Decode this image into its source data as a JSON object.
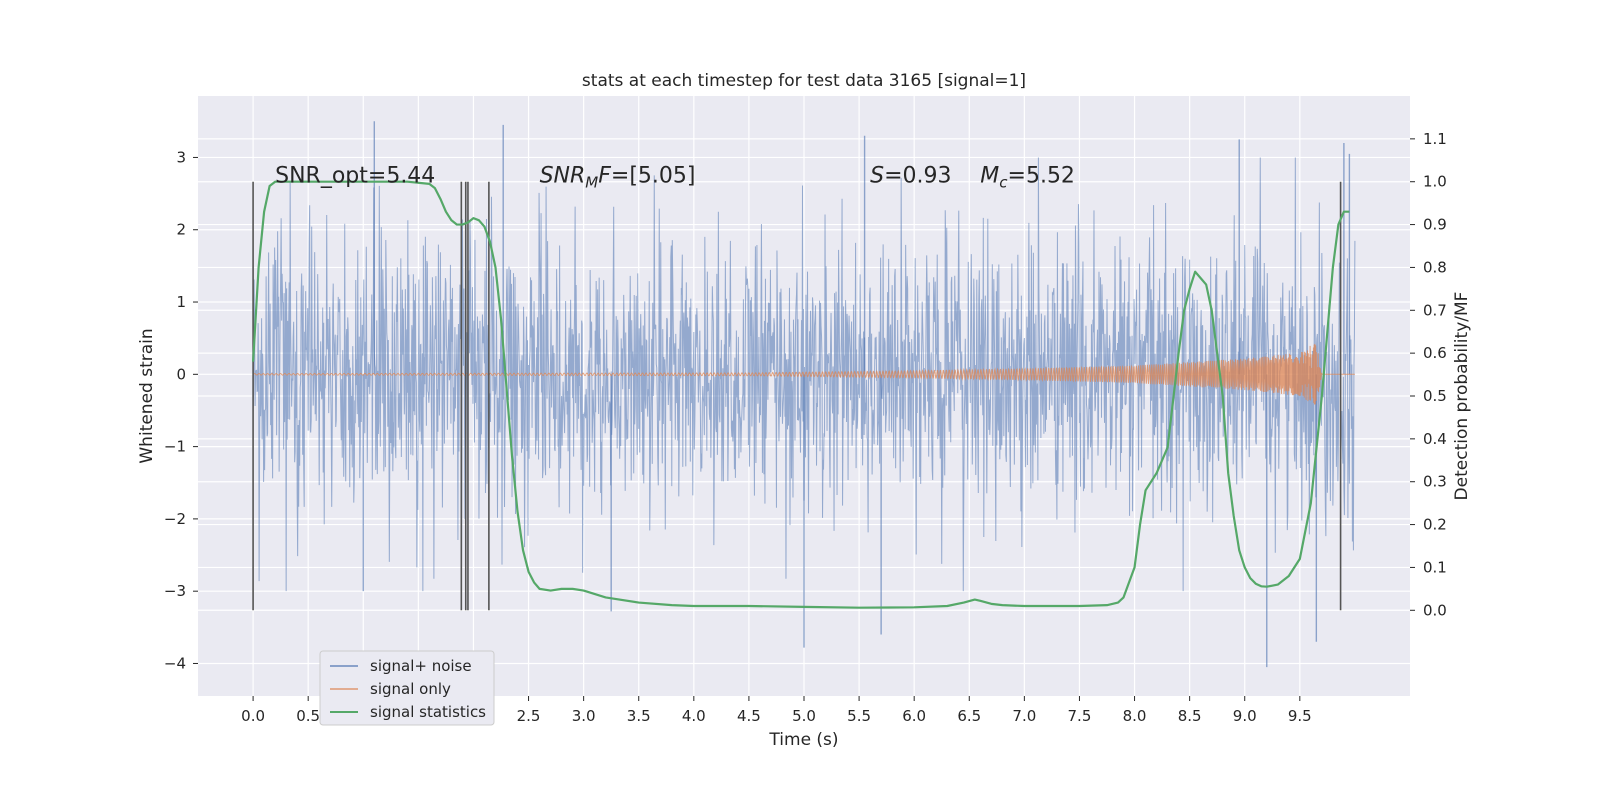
{
  "chart_data": {
    "type": "line",
    "title": "stats at each timestep for test data 3165 [signal=1]",
    "xlabel": "Time (s)",
    "ylabel": "Whitened strain",
    "y2label": "Detection probability/MF",
    "xlim": [
      -0.5,
      10.5
    ],
    "ylim": [
      -4.45,
      3.85
    ],
    "y2lim": [
      -0.2,
      1.2
    ],
    "x_ticks": [
      0.0,
      0.5,
      1.0,
      1.5,
      2.0,
      2.5,
      3.0,
      3.5,
      4.0,
      4.5,
      5.0,
      5.5,
      6.0,
      6.5,
      7.0,
      7.5,
      8.0,
      8.5,
      9.0,
      9.5
    ],
    "x_tick_labels": [
      "0.0",
      "0.5",
      "1.0",
      "1.5",
      "2.0",
      "2.5",
      "3.0",
      "3.5",
      "4.0",
      "4.5",
      "5.0",
      "5.5",
      "6.0",
      "6.5",
      "7.0",
      "7.5",
      "8.0",
      "8.5",
      "9.0",
      "9.5"
    ],
    "y_ticks": [
      -4,
      -3,
      -2,
      -1,
      0,
      1,
      2,
      3
    ],
    "y_tick_labels": [
      "−4",
      "−3",
      "−2",
      "−1",
      "0",
      "1",
      "2",
      "3"
    ],
    "y2_ticks": [
      0.0,
      0.1,
      0.2,
      0.3,
      0.4,
      0.5,
      0.6,
      0.7,
      0.8,
      0.9,
      1.0,
      1.1
    ],
    "y2_tick_labels": [
      "0.0",
      "0.1",
      "0.2",
      "0.3",
      "0.4",
      "0.5",
      "0.6",
      "0.7",
      "0.8",
      "0.9",
      "1.0",
      "1.1"
    ],
    "grid": true,
    "legend_position": "lower-left",
    "series": [
      {
        "name": "signal+ noise",
        "axis": "left",
        "color": "#4c72b0",
        "style": "dense noise, envelope approx ±2.2 with spikes to about ±3.5",
        "x_range": [
          0.0,
          10.0
        ],
        "spikes": [
          {
            "x": 1.1,
            "y": 3.5
          },
          {
            "x": 2.27,
            "y": 3.45
          },
          {
            "x": 5.0,
            "y": -3.78
          },
          {
            "x": 5.55,
            "y": 3.3
          },
          {
            "x": 5.7,
            "y": -3.6
          },
          {
            "x": 9.2,
            "y": -4.05
          },
          {
            "x": 9.65,
            "y": -3.7
          },
          {
            "x": 9.9,
            "y": 3.2
          },
          {
            "x": 9.95,
            "y": 3.05
          },
          {
            "x": 8.95,
            "y": 3.25
          },
          {
            "x": 1.0,
            "y": -3.0
          },
          {
            "x": 3.25,
            "y": -3.28
          }
        ]
      },
      {
        "name": "signal only",
        "axis": "left",
        "color": "#dd8452",
        "style": "chirp with growing amplitude, peak near x=9.65",
        "x_range": [
          0.0,
          10.0
        ],
        "envelope": [
          {
            "x": 0.0,
            "amp": 0.01
          },
          {
            "x": 4.5,
            "amp": 0.02
          },
          {
            "x": 6.0,
            "amp": 0.05
          },
          {
            "x": 7.0,
            "amp": 0.08
          },
          {
            "x": 8.0,
            "amp": 0.12
          },
          {
            "x": 9.0,
            "amp": 0.22
          },
          {
            "x": 9.5,
            "amp": 0.3
          },
          {
            "x": 9.65,
            "amp": 0.45
          },
          {
            "x": 9.7,
            "amp": 0.0
          }
        ]
      },
      {
        "name": "signal statistics",
        "axis": "right",
        "color": "#55a868",
        "x": [
          0.0,
          0.05,
          0.1,
          0.15,
          0.2,
          0.3,
          0.5,
          0.8,
          1.0,
          1.2,
          1.4,
          1.6,
          1.65,
          1.7,
          1.75,
          1.8,
          1.85,
          1.9,
          1.95,
          2.0,
          2.05,
          2.1,
          2.15,
          2.2,
          2.25,
          2.3,
          2.35,
          2.4,
          2.45,
          2.5,
          2.55,
          2.6,
          2.7,
          2.8,
          2.9,
          3.0,
          3.2,
          3.5,
          3.8,
          4.0,
          4.5,
          5.0,
          5.5,
          6.0,
          6.3,
          6.45,
          6.55,
          6.6,
          6.7,
          6.8,
          7.0,
          7.5,
          7.75,
          7.85,
          7.9,
          8.0,
          8.05,
          8.1,
          8.2,
          8.3,
          8.4,
          8.45,
          8.5,
          8.55,
          8.6,
          8.65,
          8.7,
          8.8,
          8.85,
          8.9,
          8.95,
          9.0,
          9.05,
          9.1,
          9.15,
          9.2,
          9.3,
          9.4,
          9.5,
          9.6,
          9.7,
          9.8,
          9.85,
          9.9,
          9.95
        ],
        "y": [
          0.58,
          0.8,
          0.93,
          0.99,
          1.0,
          1.0,
          1.0,
          1.0,
          1.0,
          1.0,
          1.0,
          0.995,
          0.985,
          0.96,
          0.93,
          0.91,
          0.9,
          0.9,
          0.905,
          0.915,
          0.91,
          0.895,
          0.86,
          0.8,
          0.68,
          0.52,
          0.36,
          0.23,
          0.14,
          0.09,
          0.065,
          0.05,
          0.046,
          0.05,
          0.05,
          0.046,
          0.03,
          0.018,
          0.012,
          0.01,
          0.01,
          0.008,
          0.006,
          0.007,
          0.01,
          0.018,
          0.025,
          0.022,
          0.015,
          0.012,
          0.01,
          0.01,
          0.012,
          0.018,
          0.03,
          0.1,
          0.2,
          0.28,
          0.32,
          0.38,
          0.6,
          0.7,
          0.75,
          0.79,
          0.775,
          0.76,
          0.7,
          0.5,
          0.32,
          0.22,
          0.14,
          0.1,
          0.075,
          0.062,
          0.056,
          0.055,
          0.06,
          0.08,
          0.12,
          0.25,
          0.5,
          0.8,
          0.9,
          0.93,
          0.93
        ]
      }
    ],
    "vertical_lines": {
      "color": "#555555",
      "axis": "right",
      "ymin": 0.0,
      "ymax": 1.0,
      "x": [
        0.0,
        1.89,
        1.93,
        1.95,
        2.14,
        9.87
      ]
    },
    "annotations": [
      {
        "text": "SNR_opt=5.44",
        "x": 0.2,
        "y2": 1.0
      },
      {
        "text_italic": "SNR",
        "text_sub": "M",
        "text_italic2": "F",
        "text": "=[5.05]",
        "x": 2.6,
        "y2": 1.0
      },
      {
        "text_italic": "S",
        "text": "=0.93",
        "x": 5.6,
        "y2": 1.0
      },
      {
        "text_italic": "M",
        "text_sub": "c",
        "text": "=5.52",
        "x": 6.6,
        "y2": 1.0
      }
    ]
  }
}
